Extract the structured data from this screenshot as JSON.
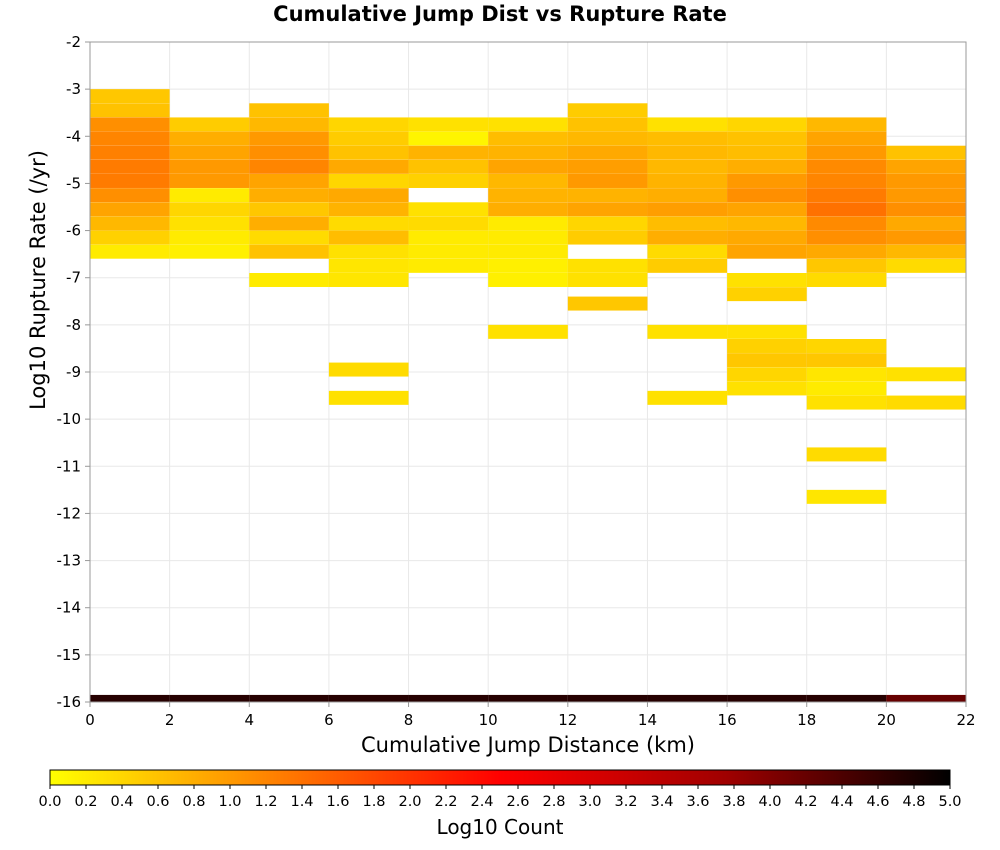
{
  "chart_data": {
    "type": "heatmap",
    "title": "Cumulative Jump Dist vs Rupture Rate",
    "xlabel": "Cumulative Jump Distance (km)",
    "ylabel": "Log10 Rupture Rate (/yr)",
    "xlim": [
      0,
      22
    ],
    "ylim": [
      -16,
      -2
    ],
    "xticks": [
      0,
      2,
      4,
      6,
      8,
      10,
      12,
      14,
      16,
      18,
      20,
      22
    ],
    "yticks": [
      -2,
      -3,
      -4,
      -5,
      -6,
      -7,
      -8,
      -9,
      -10,
      -11,
      -12,
      -13,
      -14,
      -15,
      -16
    ],
    "x_bin_width": 2,
    "y_bin_height": 0.286,
    "grid": true,
    "colorbar": {
      "label": "Log10 Count",
      "range": [
        0.0,
        5.0
      ],
      "ticks": [
        "0.0",
        "0.2",
        "0.4",
        "0.6",
        "0.8",
        "1.0",
        "1.2",
        "1.4",
        "1.6",
        "1.8",
        "2.0",
        "2.2",
        "2.4",
        "2.6",
        "2.8",
        "3.0",
        "3.2",
        "3.4",
        "3.6",
        "3.8",
        "4.0",
        "4.2",
        "4.4",
        "4.6",
        "4.8",
        "5.0"
      ],
      "colormap": [
        "#ffff00",
        "#ff8000",
        "#ff0000",
        "#a00000",
        "#000000"
      ]
    },
    "columns": [
      {
        "x": 0,
        "cells": [
          [
            -3.0,
            0.55
          ],
          [
            -3.3,
            0.6
          ],
          [
            -3.6,
            1.1
          ],
          [
            -3.9,
            1.2
          ],
          [
            -4.2,
            1.25
          ],
          [
            -4.5,
            1.3
          ],
          [
            -4.8,
            1.3
          ],
          [
            -5.1,
            1.1
          ],
          [
            -5.4,
            0.9
          ],
          [
            -5.7,
            0.7
          ],
          [
            -6.0,
            0.45
          ],
          [
            -6.3,
            0.2
          ]
        ]
      },
      {
        "x": 2,
        "cells": [
          [
            -3.6,
            0.5
          ],
          [
            -3.9,
            0.8
          ],
          [
            -4.2,
            0.9
          ],
          [
            -4.5,
            1.0
          ],
          [
            -4.8,
            1.0
          ],
          [
            -5.1,
            0.2
          ],
          [
            -5.4,
            0.4
          ],
          [
            -5.7,
            0.3
          ],
          [
            -6.0,
            0.2
          ],
          [
            -6.3,
            0.15
          ]
        ]
      },
      {
        "x": 4,
        "cells": [
          [
            -3.3,
            0.6
          ],
          [
            -3.6,
            0.7
          ],
          [
            -3.9,
            1.0
          ],
          [
            -4.2,
            1.1
          ],
          [
            -4.5,
            1.2
          ],
          [
            -4.8,
            0.9
          ],
          [
            -5.1,
            0.8
          ],
          [
            -5.4,
            0.55
          ],
          [
            -5.7,
            0.8
          ],
          [
            -6.0,
            0.35
          ],
          [
            -6.3,
            0.6
          ],
          [
            -6.9,
            0.2
          ]
        ]
      },
      {
        "x": 6,
        "cells": [
          [
            -3.6,
            0.4
          ],
          [
            -3.9,
            0.5
          ],
          [
            -4.2,
            0.6
          ],
          [
            -4.5,
            0.85
          ],
          [
            -4.8,
            0.4
          ],
          [
            -5.1,
            0.85
          ],
          [
            -5.4,
            0.75
          ],
          [
            -5.7,
            0.35
          ],
          [
            -6.0,
            0.65
          ],
          [
            -6.3,
            0.3
          ],
          [
            -6.6,
            0.25
          ],
          [
            -6.9,
            0.25
          ],
          [
            -8.8,
            0.35
          ],
          [
            -9.4,
            0.3
          ]
        ]
      },
      {
        "x": 8,
        "cells": [
          [
            -3.6,
            0.3
          ],
          [
            -3.9,
            0.1
          ],
          [
            -4.2,
            0.75
          ],
          [
            -4.5,
            0.6
          ],
          [
            -4.8,
            0.45
          ],
          [
            -5.4,
            0.3
          ],
          [
            -5.7,
            0.35
          ],
          [
            -6.0,
            0.2
          ],
          [
            -6.3,
            0.2
          ],
          [
            -6.6,
            0.2
          ]
        ]
      },
      {
        "x": 10,
        "cells": [
          [
            -3.6,
            0.3
          ],
          [
            -3.9,
            0.65
          ],
          [
            -4.2,
            0.75
          ],
          [
            -4.5,
            0.9
          ],
          [
            -4.8,
            0.7
          ],
          [
            -5.1,
            0.75
          ],
          [
            -5.4,
            0.8
          ],
          [
            -5.7,
            0.2
          ],
          [
            -6.0,
            0.2
          ],
          [
            -6.3,
            0.2
          ],
          [
            -6.6,
            0.15
          ],
          [
            -6.9,
            0.15
          ],
          [
            -8.0,
            0.3
          ]
        ]
      },
      {
        "x": 12,
        "cells": [
          [
            -3.3,
            0.5
          ],
          [
            -3.6,
            0.6
          ],
          [
            -3.9,
            0.7
          ],
          [
            -4.2,
            0.85
          ],
          [
            -4.5,
            0.95
          ],
          [
            -4.8,
            1.0
          ],
          [
            -5.1,
            0.75
          ],
          [
            -5.4,
            0.9
          ],
          [
            -5.7,
            0.4
          ],
          [
            -6.0,
            0.5
          ],
          [
            -6.6,
            0.3
          ],
          [
            -6.9,
            0.3
          ],
          [
            -7.4,
            0.55
          ]
        ]
      },
      {
        "x": 14,
        "cells": [
          [
            -3.6,
            0.3
          ],
          [
            -3.9,
            0.65
          ],
          [
            -4.2,
            0.7
          ],
          [
            -4.5,
            0.7
          ],
          [
            -4.8,
            0.75
          ],
          [
            -5.1,
            0.8
          ],
          [
            -5.4,
            0.95
          ],
          [
            -5.7,
            0.65
          ],
          [
            -6.0,
            0.8
          ],
          [
            -6.3,
            0.35
          ],
          [
            -6.6,
            0.5
          ],
          [
            -8.0,
            0.3
          ],
          [
            -9.4,
            0.3
          ]
        ]
      },
      {
        "x": 16,
        "cells": [
          [
            -3.6,
            0.4
          ],
          [
            -3.9,
            0.6
          ],
          [
            -4.2,
            0.65
          ],
          [
            -4.5,
            0.8
          ],
          [
            -4.8,
            1.0
          ],
          [
            -5.1,
            1.1
          ],
          [
            -5.4,
            0.9
          ],
          [
            -5.7,
            0.7
          ],
          [
            -6.0,
            0.85
          ],
          [
            -6.3,
            0.9
          ],
          [
            -6.9,
            0.3
          ],
          [
            -7.2,
            0.45
          ],
          [
            -8.0,
            0.3
          ],
          [
            -8.3,
            0.45
          ],
          [
            -8.6,
            0.55
          ],
          [
            -8.9,
            0.4
          ],
          [
            -9.2,
            0.3
          ]
        ]
      },
      {
        "x": 18,
        "cells": [
          [
            -3.6,
            0.7
          ],
          [
            -3.9,
            0.9
          ],
          [
            -4.2,
            1.0
          ],
          [
            -4.5,
            1.15
          ],
          [
            -4.8,
            1.2
          ],
          [
            -5.1,
            1.3
          ],
          [
            -5.4,
            1.4
          ],
          [
            -5.7,
            1.15
          ],
          [
            -6.0,
            1.1
          ],
          [
            -6.3,
            0.85
          ],
          [
            -6.6,
            0.55
          ],
          [
            -6.9,
            0.35
          ],
          [
            -8.3,
            0.4
          ],
          [
            -8.6,
            0.55
          ],
          [
            -8.9,
            0.25
          ],
          [
            -9.2,
            0.2
          ],
          [
            -9.5,
            0.3
          ],
          [
            -10.6,
            0.35
          ],
          [
            -11.5,
            0.25
          ]
        ]
      },
      {
        "x": 20,
        "cells": [
          [
            -4.2,
            0.6
          ],
          [
            -4.5,
            0.9
          ],
          [
            -4.8,
            1.0
          ],
          [
            -5.1,
            1.0
          ],
          [
            -5.4,
            1.1
          ],
          [
            -5.7,
            0.85
          ],
          [
            -6.0,
            1.0
          ],
          [
            -6.3,
            0.7
          ],
          [
            -6.6,
            0.35
          ],
          [
            -8.9,
            0.3
          ],
          [
            -9.5,
            0.35
          ]
        ]
      }
    ],
    "bottom_row": {
      "y": -16.0,
      "values": [
        4.7,
        4.7,
        4.7,
        4.7,
        4.7,
        4.7,
        4.7,
        4.7,
        4.7,
        4.7,
        4.2
      ]
    }
  }
}
